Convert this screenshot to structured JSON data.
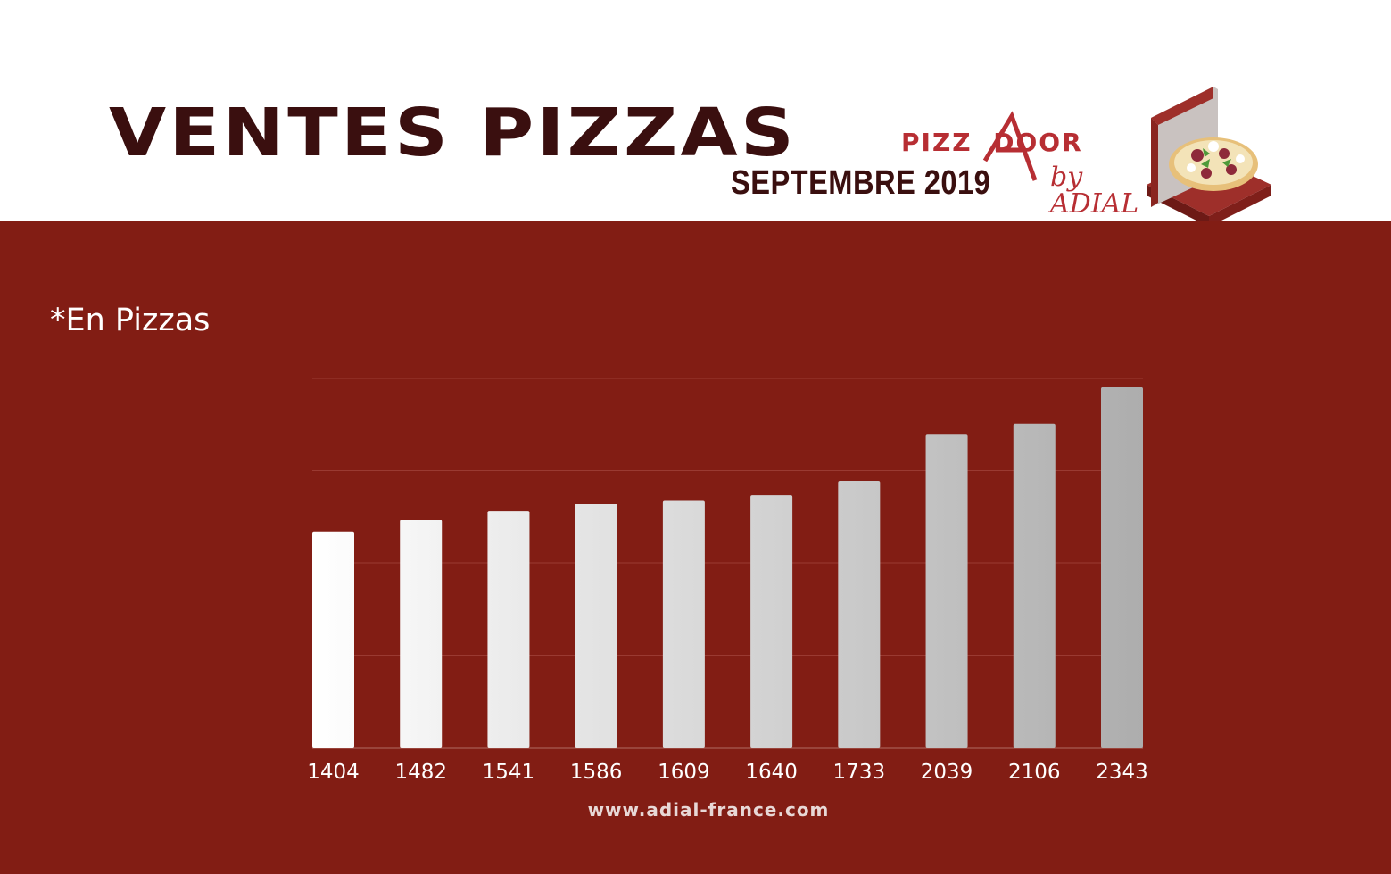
{
  "header": {
    "title": "VENTES PIZZAS",
    "subtitle": "SEPTEMBRE 2019",
    "logo_text": "PIZZADOOR by ADIAL",
    "logo_icon": "pizza-box-icon"
  },
  "unit_note": "*En Pizzas",
  "footer": {
    "website": "www.adial-france.com"
  },
  "colors": {
    "brand_red": "#b72e33",
    "background": "#821d14",
    "title": "#3a0f0f",
    "bar_start": "#ffffff",
    "bar_end": "#adadad"
  },
  "chart_data": {
    "type": "bar",
    "title": "VENTES PIZZAS",
    "subtitle": "SEPTEMBRE 2019",
    "categories": [
      "1404",
      "1482",
      "1541",
      "1586",
      "1609",
      "1640",
      "1733",
      "2039",
      "2106",
      "2343"
    ],
    "values": [
      1404,
      1482,
      1541,
      1586,
      1609,
      1640,
      1733,
      2039,
      2106,
      2343
    ],
    "xlabel": "",
    "ylabel": "*En Pizzas",
    "ylim": [
      0,
      2400
    ],
    "grid": true,
    "legend": "none"
  }
}
